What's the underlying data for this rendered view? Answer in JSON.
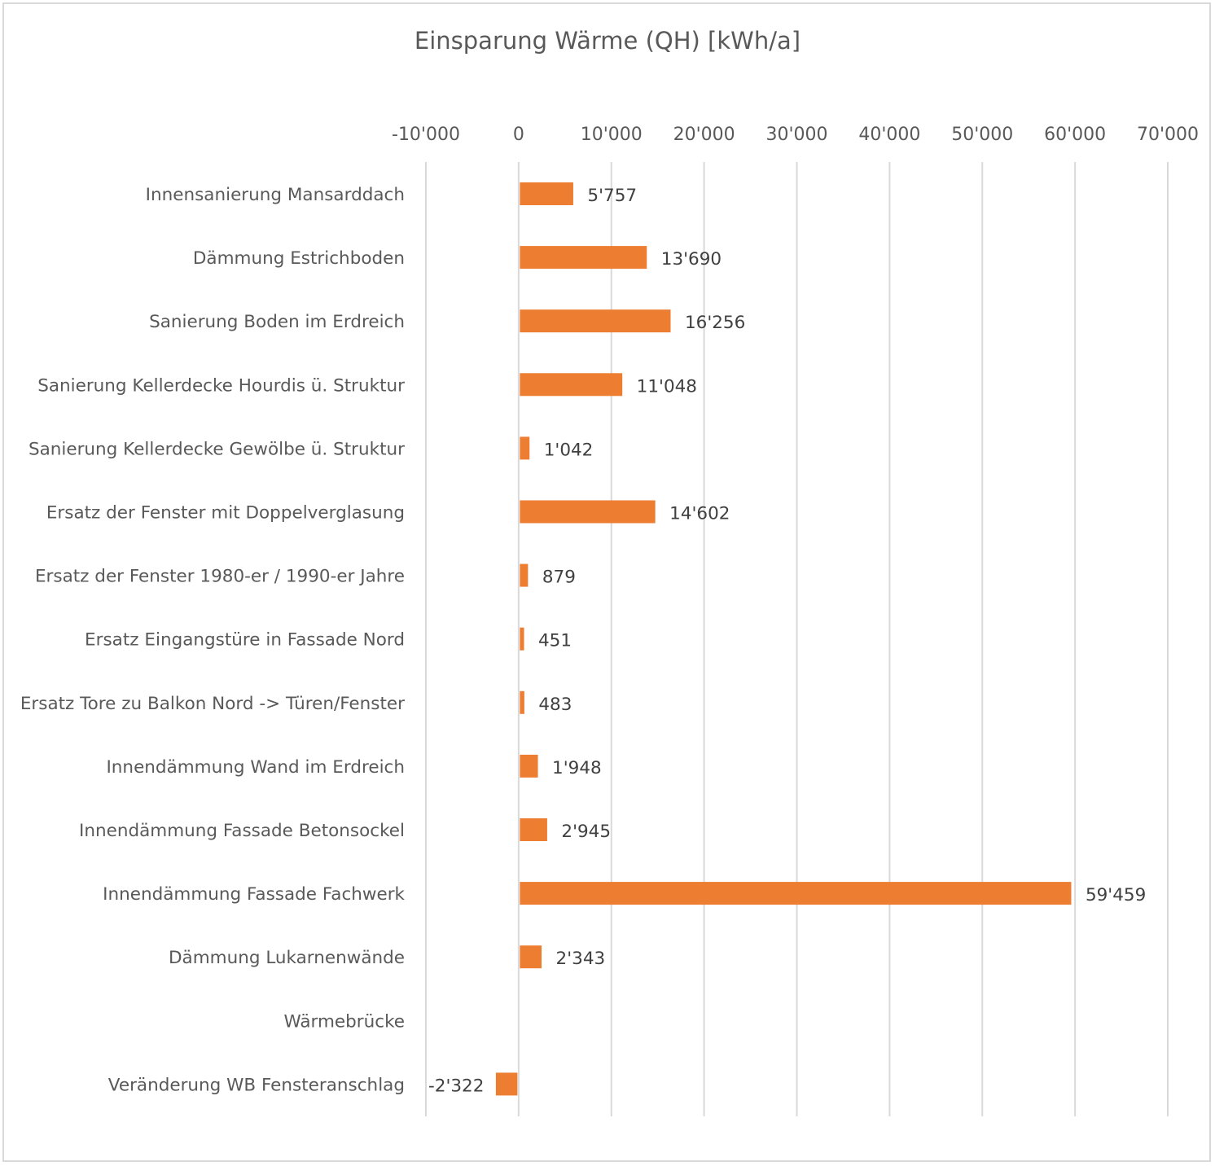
{
  "chart_data": {
    "type": "bar",
    "orientation": "horizontal",
    "title": "Einsparung Wärme (QH) [kWh/a]",
    "xlim": [
      -10000,
      70000
    ],
    "x_ticks": [
      -10000,
      0,
      10000,
      20000,
      30000,
      40000,
      50000,
      60000,
      70000
    ],
    "x_tick_labels": [
      "-10'000",
      "0",
      "10'000",
      "20'000",
      "30'000",
      "40'000",
      "50'000",
      "60'000",
      "70'000"
    ],
    "x_axis_position": "top",
    "grid": true,
    "bar_color": "#ed7d31",
    "categories": [
      "Innensanierung Mansarddach",
      "Dämmung Estrichboden",
      "Sanierung Boden im Erdreich",
      "Sanierung Kellerdecke Hourdis ü. Struktur",
      "Sanierung Kellerdecke Gewölbe ü. Struktur",
      "Ersatz der Fenster mit Doppelverglasung",
      "Ersatz der Fenster 1980-er / 1990-er Jahre",
      "Ersatz Eingangstüre in Fassade Nord",
      "Ersatz Tore zu Balkon Nord -> Türen/Fenster",
      "Innendämmung Wand im Erdreich",
      "Innendämmung Fassade Betonsockel",
      "Innendämmung Fassade Fachwerk",
      "Dämmung Lukarnenwände",
      "Wärmebrücke",
      "Veränderung WB Fensteranschlag"
    ],
    "values": [
      5757,
      13690,
      16256,
      11048,
      1042,
      14602,
      879,
      451,
      483,
      1948,
      2945,
      59459,
      2343,
      null,
      -2322
    ],
    "value_labels": [
      "5'757",
      "13'690",
      "16'256",
      "11'048",
      "1'042",
      "14'602",
      "879",
      "451",
      "483",
      "1'948",
      "2'945",
      "59'459",
      "2'343",
      "",
      "-2'322"
    ]
  }
}
